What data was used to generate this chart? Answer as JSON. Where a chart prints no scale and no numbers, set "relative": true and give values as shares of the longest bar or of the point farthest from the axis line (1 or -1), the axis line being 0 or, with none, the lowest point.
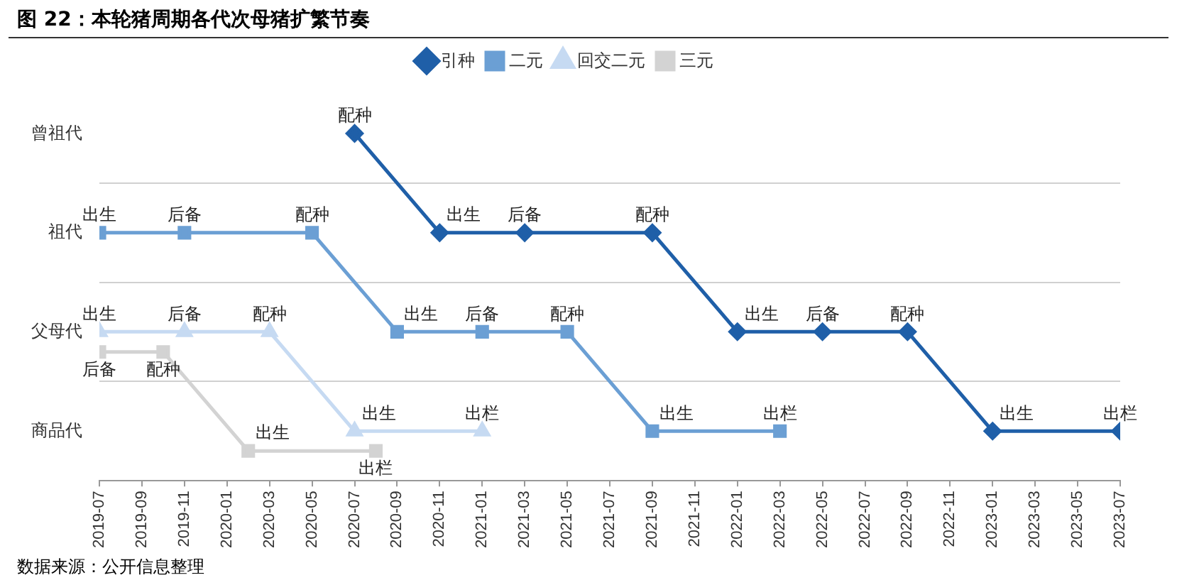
{
  "chart_data": {
    "type": "line",
    "title": "图 22：本轮猪周期各代次母猪扩繁节奏",
    "relative": true,
    "xlim": [
      "2019-07",
      "2023-07"
    ],
    "xticks": [
      "2019-07",
      "2019-09",
      "2019-11",
      "2020-01",
      "2020-03",
      "2020-05",
      "2020-07",
      "2020-09",
      "2020-11",
      "2021-01",
      "2021-03",
      "2021-05",
      "2021-07",
      "2021-09",
      "2021-11",
      "2022-01",
      "2022-03",
      "2022-05",
      "2022-07",
      "2022-09",
      "2022-11",
      "2023-01",
      "2023-03",
      "2023-05",
      "2023-07"
    ],
    "y_categories": [
      "曾祖代",
      "祖代",
      "父母代",
      "商品代"
    ],
    "grid": "y",
    "legend": "top",
    "series": [
      {
        "name": "引种",
        "color": "#1f5fa8",
        "marker": "diamond",
        "x": [
          "2020-07",
          "2020-11",
          "2021-03",
          "2021-09",
          "2022-01",
          "2022-05",
          "2022-09",
          "2023-01",
          "2023-07"
        ],
        "values": [
          1,
          0.714,
          0.714,
          0.714,
          0.429,
          0.429,
          0.429,
          0.143,
          0.143
        ]
      },
      {
        "name": "二元",
        "color": "#6b9fd4",
        "marker": "square",
        "x": [
          "2019-07",
          "2019-11",
          "2020-05",
          "2020-09",
          "2021-01",
          "2021-05",
          "2021-09",
          "2022-03"
        ],
        "values": [
          0.714,
          0.714,
          0.714,
          0.429,
          0.429,
          0.429,
          0.143,
          0.143
        ]
      },
      {
        "name": "回交二元",
        "color": "#c6daf2",
        "marker": "triangle",
        "x": [
          "2019-07",
          "2019-11",
          "2020-03",
          "2020-07",
          "2021-01"
        ],
        "values": [
          0.429,
          0.429,
          0.429,
          0.143,
          0.143
        ]
      },
      {
        "name": "三元",
        "color": "#d3d3d3",
        "marker": "square",
        "x": [
          "2019-07",
          "2019-10",
          "2020-02",
          "2020-08"
        ],
        "values": [
          0.371,
          0.371,
          0.086,
          0.086
        ]
      }
    ],
    "annotations": [
      {
        "text": "配种",
        "x": "2020-07",
        "y": 1
      },
      {
        "text": "出生",
        "x": "2020-11",
        "y": 0.714
      },
      {
        "text": "后备",
        "x": "2021-03",
        "y": 0.714
      },
      {
        "text": "配种",
        "x": "2021-09",
        "y": 0.714
      },
      {
        "text": "出生",
        "x": "2022-01",
        "y": 0.429
      },
      {
        "text": "后备",
        "x": "2022-05",
        "y": 0.429
      },
      {
        "text": "配种",
        "x": "2022-09",
        "y": 0.429
      },
      {
        "text": "出生",
        "x": "2023-01",
        "y": 0.143
      },
      {
        "text": "出栏",
        "x": "2023-07",
        "y": 0.143
      },
      {
        "text": "出生",
        "x": "2019-07",
        "y": 0.714
      },
      {
        "text": "后备",
        "x": "2019-11",
        "y": 0.714
      },
      {
        "text": "配种",
        "x": "2020-05",
        "y": 0.714
      },
      {
        "text": "出生",
        "x": "2020-09",
        "y": 0.429
      },
      {
        "text": "后备",
        "x": "2021-01",
        "y": 0.429
      },
      {
        "text": "配种",
        "x": "2021-05",
        "y": 0.429
      },
      {
        "text": "出生",
        "x": "2021-09",
        "y": 0.143
      },
      {
        "text": "出栏",
        "x": "2022-03",
        "y": 0.143
      },
      {
        "text": "出生",
        "x": "2019-07",
        "y": 0.429
      },
      {
        "text": "后备",
        "x": "2019-11",
        "y": 0.429
      },
      {
        "text": "配种",
        "x": "2020-03",
        "y": 0.429
      },
      {
        "text": "出生",
        "x": "2020-07",
        "y": 0.143
      },
      {
        "text": "出栏",
        "x": "2021-01",
        "y": 0.143
      },
      {
        "text": "后备",
        "x": "2019-07",
        "y": 0.371
      },
      {
        "text": "配种",
        "x": "2019-10",
        "y": 0.371
      },
      {
        "text": "出生",
        "x": "2020-02",
        "y": 0.086
      },
      {
        "text": "出栏",
        "x": "2020-08",
        "y": 0.086
      },
      "数据来源：公开信息整理"
    ]
  }
}
